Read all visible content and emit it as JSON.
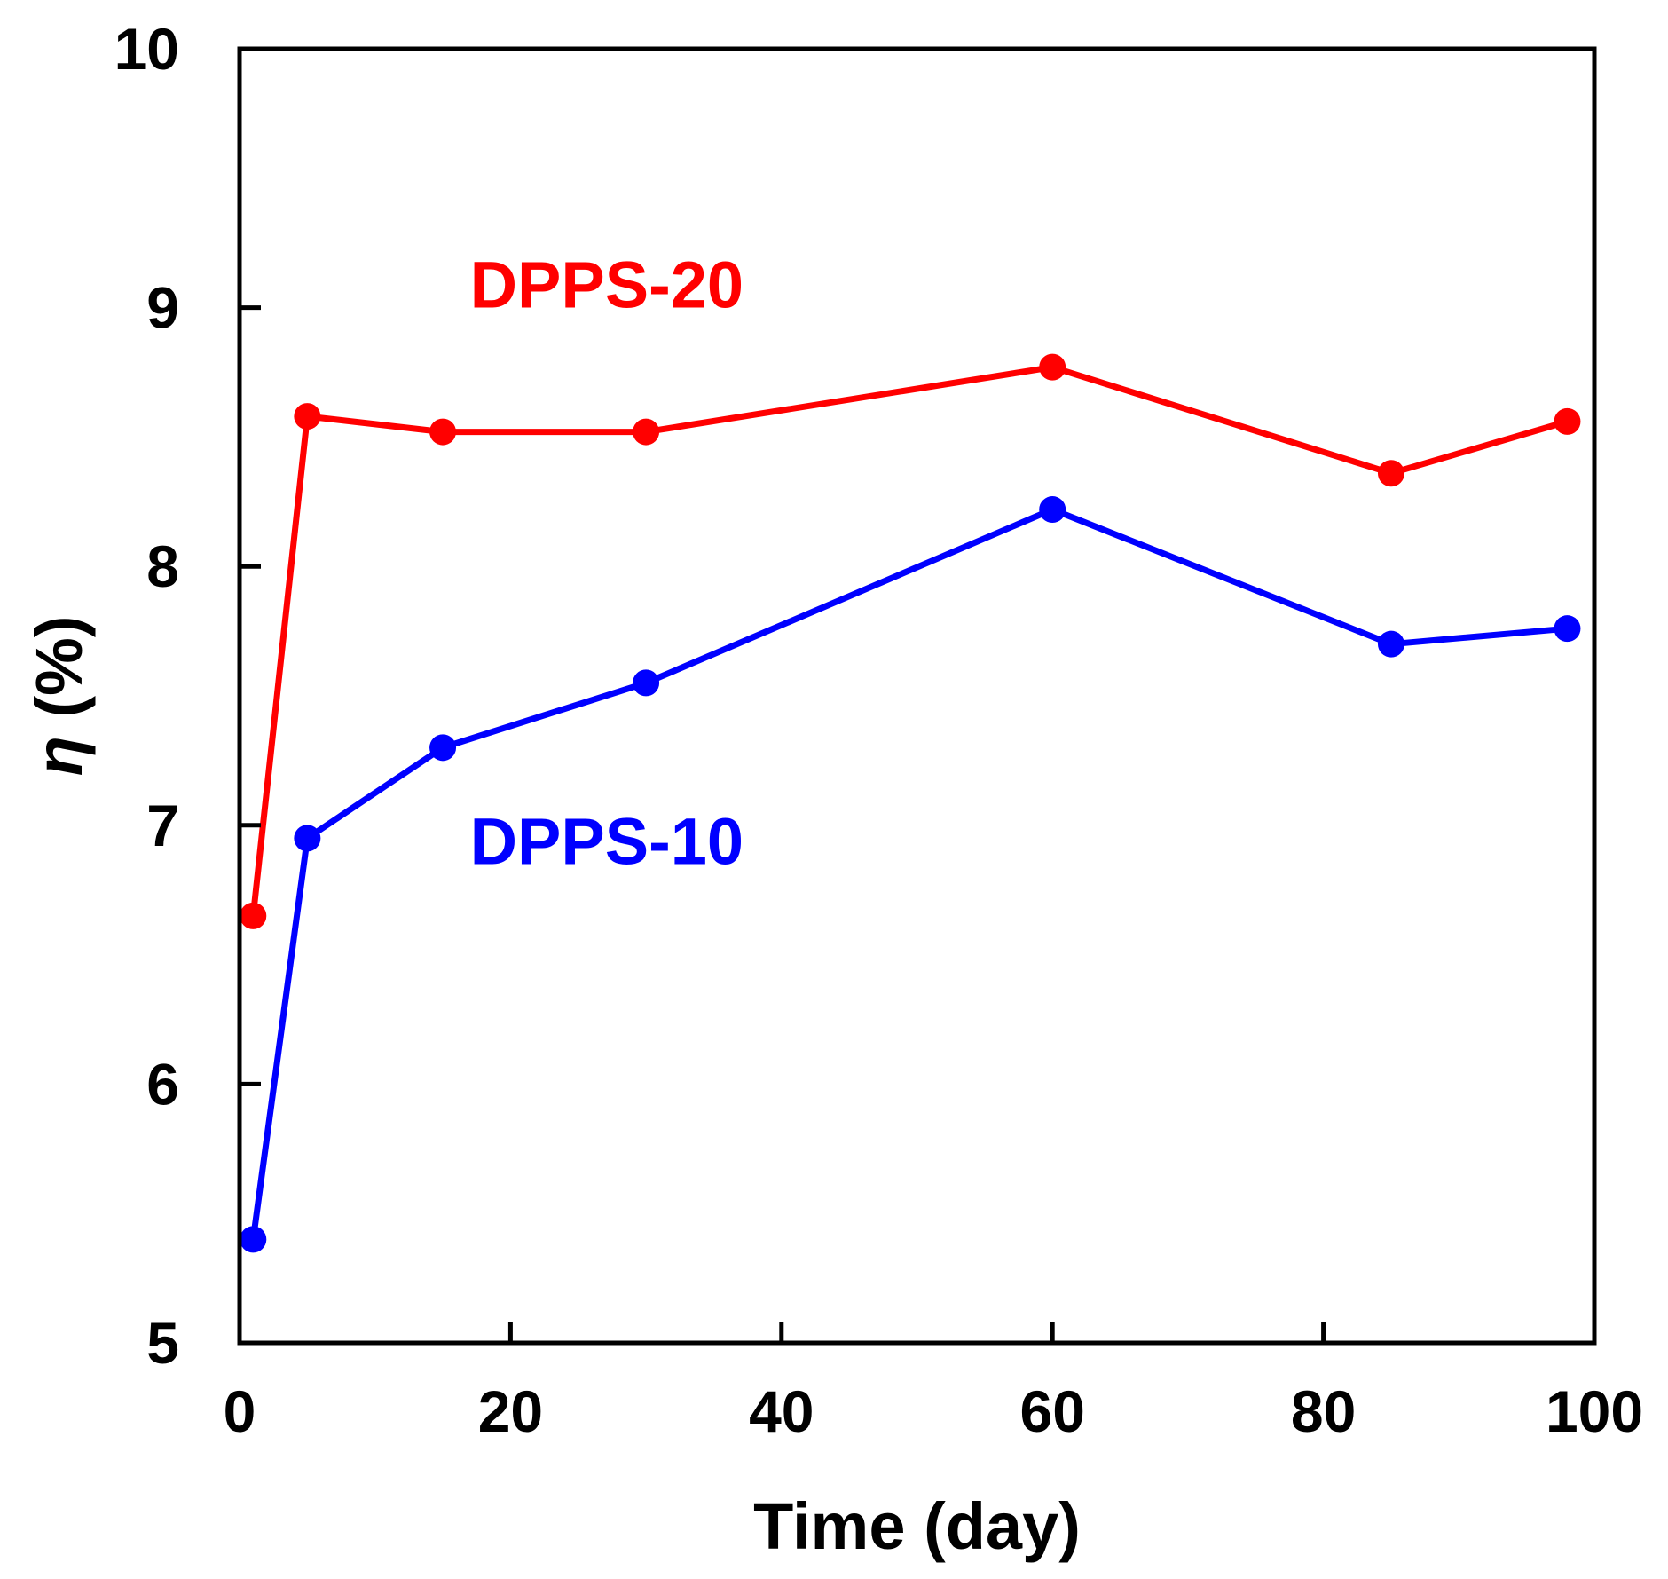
{
  "chart_data": {
    "type": "line",
    "title": "",
    "xlabel": "Time (day)",
    "ylabel_symbol": "η",
    "ylabel_unit": " (%)",
    "xlim": [
      0,
      100
    ],
    "ylim": [
      5,
      10
    ],
    "xticks": [
      0,
      20,
      40,
      60,
      80,
      100
    ],
    "yticks": [
      5,
      6,
      7,
      8,
      9,
      10
    ],
    "grid": false,
    "series": [
      {
        "name": "DPPS-20",
        "color": "#ff0000",
        "label_anchor": [
          17,
          9.0
        ],
        "x": [
          1,
          5,
          15,
          30,
          60,
          85,
          98
        ],
        "values": [
          6.65,
          8.58,
          8.52,
          8.52,
          8.77,
          8.36,
          8.56
        ]
      },
      {
        "name": "DPPS-10",
        "color": "#0000ff",
        "label_anchor": [
          17,
          6.85
        ],
        "x": [
          1,
          5,
          15,
          30,
          60,
          85,
          98
        ],
        "values": [
          5.4,
          6.95,
          7.3,
          7.55,
          8.22,
          7.7,
          7.76
        ]
      }
    ]
  }
}
